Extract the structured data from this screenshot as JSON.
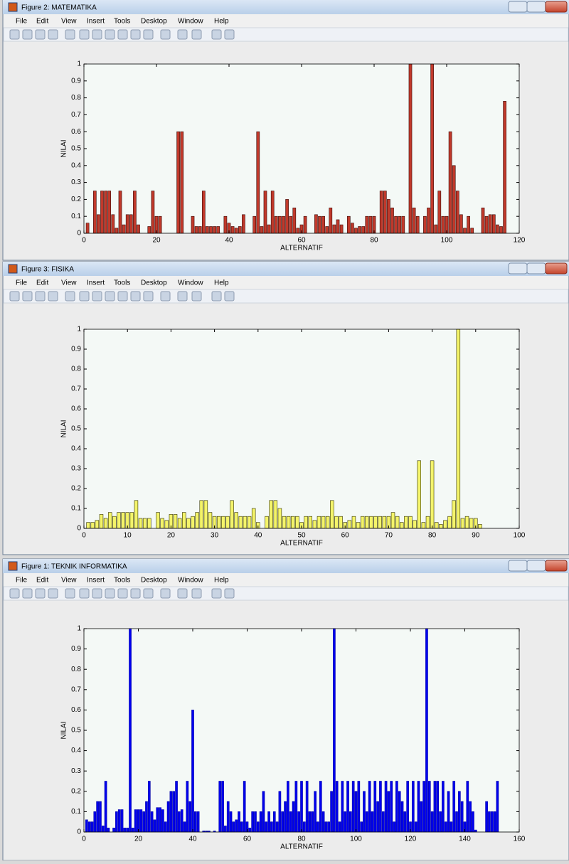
{
  "windows": [
    {
      "title": "Figure 2: MATEMATIKA",
      "menu": [
        "File",
        "Edit",
        "View",
        "Insert",
        "Tools",
        "Desktop",
        "Window",
        "Help"
      ]
    },
    {
      "title": "Figure 3: FISIKA",
      "menu": [
        "File",
        "Edit",
        "View",
        "Insert",
        "Tools",
        "Desktop",
        "Window",
        "Help"
      ]
    },
    {
      "title": "Figure 1: TEKNIK INFORMATIKA",
      "menu": [
        "File",
        "Edit",
        "View",
        "Insert",
        "Tools",
        "Desktop",
        "Window",
        "Help"
      ]
    }
  ],
  "chart_data": [
    {
      "type": "bar",
      "xlabel": "ALTERNATIF",
      "ylabel": "NILAI",
      "color": "#c0392b",
      "edgecolor": "#3a0a06",
      "xlim": [
        0,
        120
      ],
      "ylim": [
        0,
        1
      ],
      "xticks": [
        0,
        20,
        40,
        60,
        80,
        100,
        120
      ],
      "yticks": [
        0,
        0.1,
        0.2,
        0.3,
        0.4,
        0.5,
        0.6,
        0.7,
        0.8,
        0.9,
        1
      ],
      "x": [
        1,
        2,
        3,
        4,
        5,
        6,
        7,
        8,
        9,
        10,
        11,
        12,
        13,
        14,
        15,
        16,
        17,
        18,
        19,
        20,
        21,
        22,
        23,
        24,
        25,
        26,
        27,
        28,
        29,
        30,
        31,
        32,
        33,
        34,
        35,
        36,
        37,
        38,
        39,
        40,
        41,
        42,
        43,
        44,
        45,
        46,
        47,
        48,
        49,
        50,
        51,
        52,
        53,
        54,
        55,
        56,
        57,
        58,
        59,
        60,
        61,
        62,
        63,
        64,
        65,
        66,
        67,
        68,
        69,
        70,
        71,
        72,
        73,
        74,
        75,
        76,
        77,
        78,
        79,
        80,
        81,
        82,
        83,
        84,
        85,
        86,
        87,
        88,
        89,
        90,
        91,
        92,
        93,
        94,
        95,
        96,
        97,
        98,
        99,
        100,
        101,
        102,
        103,
        104,
        105,
        106,
        107,
        108,
        109,
        110,
        111,
        112,
        113,
        114,
        115,
        116
      ],
      "values": [
        0.06,
        0,
        0.25,
        0.11,
        0.25,
        0.25,
        0.25,
        0.11,
        0.03,
        0.25,
        0.05,
        0.11,
        0.11,
        0.25,
        0.05,
        0,
        0,
        0.04,
        0.25,
        0.1,
        0.1,
        0,
        0,
        0,
        0,
        0.6,
        0.6,
        0,
        0,
        0.1,
        0.04,
        0.04,
        0.25,
        0.04,
        0.04,
        0.04,
        0.04,
        0,
        0.1,
        0.06,
        0.04,
        0.03,
        0.04,
        0.11,
        0,
        0,
        0.1,
        0.6,
        0.04,
        0.25,
        0.05,
        0.25,
        0.1,
        0.1,
        0.1,
        0.2,
        0.1,
        0.15,
        0.03,
        0.05,
        0.1,
        0,
        0,
        0.11,
        0.1,
        0.1,
        0.04,
        0.15,
        0.05,
        0.08,
        0.05,
        0,
        0.1,
        0.06,
        0.03,
        0.04,
        0.04,
        0.1,
        0.1,
        0.1,
        0,
        0.25,
        0.25,
        0.2,
        0.15,
        0.1,
        0.1,
        0.1,
        0,
        1,
        0.15,
        0.1,
        0,
        0.1,
        0.15,
        1,
        0.05,
        0.25,
        0.1,
        0.1,
        0.6,
        0.4,
        0.25,
        0.11,
        0.03,
        0.1,
        0.03,
        0,
        0,
        0.15,
        0.1,
        0.11,
        0.11,
        0.05,
        0.04,
        0.78
      ]
    },
    {
      "type": "bar",
      "xlabel": "ALTERNATIF",
      "ylabel": "NILAI",
      "color": "#f4f46a",
      "edgecolor": "#333300",
      "xlim": [
        0,
        100
      ],
      "ylim": [
        0,
        1
      ],
      "xticks": [
        0,
        10,
        20,
        30,
        40,
        50,
        60,
        70,
        80,
        90,
        100
      ],
      "yticks": [
        0,
        0.1,
        0.2,
        0.3,
        0.4,
        0.5,
        0.6,
        0.7,
        0.8,
        0.9,
        1
      ],
      "x": [
        1,
        2,
        3,
        4,
        5,
        6,
        7,
        8,
        9,
        10,
        11,
        12,
        13,
        14,
        15,
        16,
        17,
        18,
        19,
        20,
        21,
        22,
        23,
        24,
        25,
        26,
        27,
        28,
        29,
        30,
        31,
        32,
        33,
        34,
        35,
        36,
        37,
        38,
        39,
        40,
        41,
        42,
        43,
        44,
        45,
        46,
        47,
        48,
        49,
        50,
        51,
        52,
        53,
        54,
        55,
        56,
        57,
        58,
        59,
        60,
        61,
        62,
        63,
        64,
        65,
        66,
        67,
        68,
        69,
        70,
        71,
        72,
        73,
        74,
        75,
        76,
        77,
        78,
        79,
        80,
        81,
        82,
        83,
        84,
        85,
        86,
        87,
        88,
        89,
        90,
        91
      ],
      "values": [
        0.03,
        0.03,
        0.04,
        0.07,
        0.05,
        0.08,
        0.06,
        0.08,
        0.08,
        0.08,
        0.08,
        0.14,
        0.05,
        0.05,
        0.05,
        0,
        0.08,
        0.05,
        0.04,
        0.07,
        0.07,
        0.05,
        0.08,
        0.05,
        0.06,
        0.08,
        0.14,
        0.14,
        0.08,
        0.06,
        0.06,
        0.06,
        0.06,
        0.14,
        0.08,
        0.06,
        0.06,
        0.06,
        0.1,
        0.03,
        0,
        0.06,
        0.14,
        0.14,
        0.1,
        0.06,
        0.06,
        0.06,
        0.06,
        0.03,
        0.06,
        0.06,
        0.04,
        0.06,
        0.06,
        0.06,
        0.14,
        0.06,
        0.06,
        0.03,
        0.04,
        0.06,
        0.03,
        0.06,
        0.06,
        0.06,
        0.06,
        0.06,
        0.06,
        0.06,
        0.08,
        0.06,
        0.03,
        0.06,
        0.06,
        0.04,
        0.34,
        0.03,
        0.06,
        0.34,
        0.03,
        0.02,
        0.04,
        0.06,
        0.14,
        1,
        0.05,
        0.06,
        0.05,
        0.05,
        0.02
      ]
    },
    {
      "type": "bar",
      "xlabel": "ALTERNATIF",
      "ylabel": "NILAI",
      "color": "#0000ee",
      "edgecolor": "#0000aa",
      "xlim": [
        0,
        160
      ],
      "ylim": [
        0,
        1
      ],
      "xticks": [
        0,
        20,
        40,
        60,
        80,
        100,
        120,
        140,
        160
      ],
      "yticks": [
        0,
        0.1,
        0.2,
        0.3,
        0.4,
        0.5,
        0.6,
        0.7,
        0.8,
        0.9,
        1
      ],
      "x": [
        1,
        2,
        3,
        4,
        5,
        6,
        7,
        8,
        9,
        10,
        11,
        12,
        13,
        14,
        15,
        16,
        17,
        18,
        19,
        20,
        21,
        22,
        23,
        24,
        25,
        26,
        27,
        28,
        29,
        30,
        31,
        32,
        33,
        34,
        35,
        36,
        37,
        38,
        39,
        40,
        41,
        42,
        43,
        44,
        45,
        46,
        47,
        48,
        49,
        50,
        51,
        52,
        53,
        54,
        55,
        56,
        57,
        58,
        59,
        60,
        61,
        62,
        63,
        64,
        65,
        66,
        67,
        68,
        69,
        70,
        71,
        72,
        73,
        74,
        75,
        76,
        77,
        78,
        79,
        80,
        81,
        82,
        83,
        84,
        85,
        86,
        87,
        88,
        89,
        90,
        91,
        92,
        93,
        94,
        95,
        96,
        97,
        98,
        99,
        100,
        101,
        102,
        103,
        104,
        105,
        106,
        107,
        108,
        109,
        110,
        111,
        112,
        113,
        114,
        115,
        116,
        117,
        118,
        119,
        120,
        121,
        122,
        123,
        124,
        125,
        126,
        127,
        128,
        129,
        130,
        131,
        132,
        133,
        134,
        135,
        136,
        137,
        138,
        139,
        140,
        141,
        142,
        143,
        144,
        145,
        146,
        147,
        148,
        149,
        150,
        151,
        152
      ],
      "values": [
        0.06,
        0.05,
        0.05,
        0.1,
        0.15,
        0.15,
        0.03,
        0.25,
        0.02,
        0,
        0.02,
        0.1,
        0.11,
        0.11,
        0.02,
        0.02,
        1,
        0.02,
        0.11,
        0.11,
        0.11,
        0.1,
        0.15,
        0.25,
        0.1,
        0.06,
        0.12,
        0.12,
        0.11,
        0.05,
        0.15,
        0.2,
        0.2,
        0.25,
        0.1,
        0.11,
        0.05,
        0.25,
        0.15,
        0.6,
        0.1,
        0.1,
        0,
        0.005,
        0.005,
        0.005,
        0,
        0.005,
        0,
        0.25,
        0.25,
        0.03,
        0.15,
        0.1,
        0.05,
        0.06,
        0.1,
        0.05,
        0.25,
        0.05,
        0.02,
        0.1,
        0.1,
        0.05,
        0.1,
        0.2,
        0.05,
        0.1,
        0.05,
        0.1,
        0.05,
        0.2,
        0.1,
        0.15,
        0.25,
        0.1,
        0.15,
        0.25,
        0.1,
        0.25,
        0.05,
        0.25,
        0.1,
        0.1,
        0.2,
        0.05,
        0.25,
        0.1,
        0.05,
        0.05,
        0.2,
        1,
        0.25,
        0.05,
        0.25,
        0.1,
        0.25,
        0.1,
        0.25,
        0.2,
        0.25,
        0.05,
        0.2,
        0.1,
        0.25,
        0.1,
        0.25,
        0.15,
        0.25,
        0.1,
        0.25,
        0.2,
        0.25,
        0.05,
        0.25,
        0.2,
        0.15,
        0.1,
        0.25,
        0.05,
        0.25,
        0.05,
        0.25,
        0.15,
        0.25,
        1,
        0.25,
        0.1,
        0.25,
        0.25,
        0.1,
        0.25,
        0.05,
        0.2,
        0.05,
        0.25,
        0.1,
        0.2,
        0.15,
        0.05,
        0.25,
        0.15,
        0.1,
        0.01,
        0,
        0,
        0,
        0.15,
        0.1,
        0.1,
        0.1,
        0.25
      ]
    }
  ]
}
